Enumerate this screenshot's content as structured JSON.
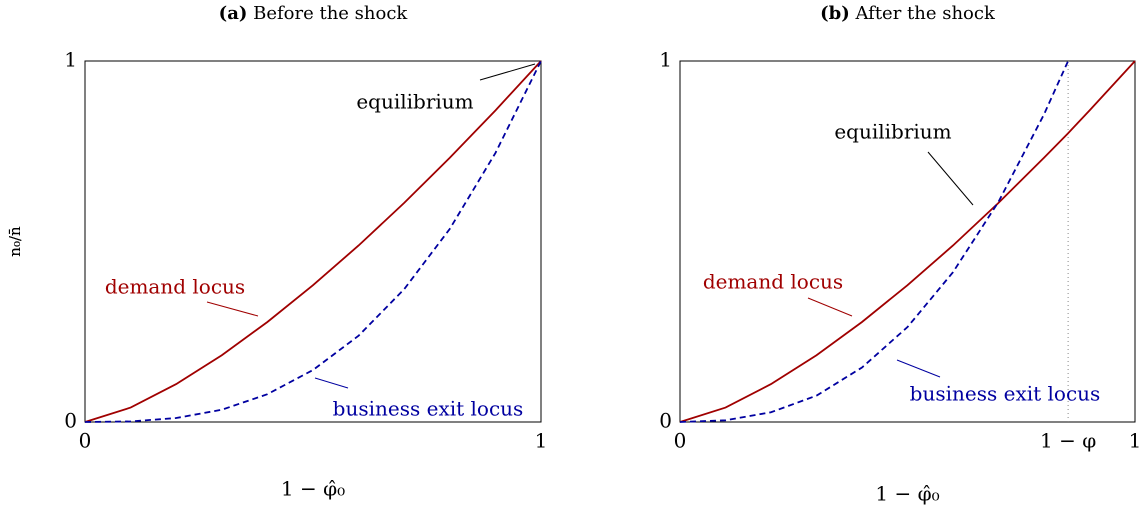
{
  "chart_data": [
    {
      "type": "line",
      "label": "(a)",
      "title": "Before the shock",
      "xlabel": "1 − φ̂₀",
      "ylabel": "n₀/n̄",
      "x": [
        0,
        0.1,
        0.2,
        0.3,
        0.4,
        0.5,
        0.6,
        0.7,
        0.8,
        0.9,
        1
      ],
      "series": [
        {
          "name": "demand locus",
          "color": "#a00000",
          "dash": false,
          "values": [
            0,
            0.04,
            0.105,
            0.185,
            0.277,
            0.379,
            0.489,
            0.607,
            0.732,
            0.863,
            1
          ]
        },
        {
          "name": "business exit locus",
          "color": "#0000a0",
          "dash": true,
          "values": [
            0,
            0.0016,
            0.011,
            0.034,
            0.077,
            0.144,
            0.239,
            0.368,
            0.535,
            0.745,
            1
          ]
        }
      ],
      "annotation": "equilibrium",
      "xlim": [
        0,
        1
      ],
      "ylim": [
        0,
        1
      ],
      "xticks": [
        0,
        1
      ],
      "yticks": [
        0,
        1
      ]
    },
    {
      "type": "line",
      "label": "(b)",
      "title": "After the shock",
      "xlabel": "1 − φ̂₀",
      "ylabel": "n₀/n̄",
      "x": [
        0,
        0.1,
        0.2,
        0.3,
        0.4,
        0.5,
        0.6,
        0.7,
        0.8,
        0.853,
        0.9,
        1
      ],
      "series": [
        {
          "name": "demand locus",
          "color": "#a00000",
          "dash": false,
          "values": [
            0,
            0.04,
            0.105,
            0.185,
            0.277,
            0.379,
            0.489,
            0.607,
            0.732,
            0.8,
            0.863,
            1
          ]
        },
        {
          "name": "business exit locus",
          "color": "#0000a0",
          "dash": true,
          "values": [
            0,
            0.0047,
            0.027,
            0.073,
            0.151,
            0.263,
            0.415,
            0.61,
            0.852,
            1,
            null,
            null
          ]
        }
      ],
      "annotation": "equilibrium",
      "xlim": [
        0,
        1
      ],
      "ylim": [
        0,
        1
      ],
      "xticks": [
        0,
        {
          "value": 0.853,
          "label": "1 − φ"
        },
        1
      ],
      "yticks": [
        0,
        1
      ]
    }
  ]
}
